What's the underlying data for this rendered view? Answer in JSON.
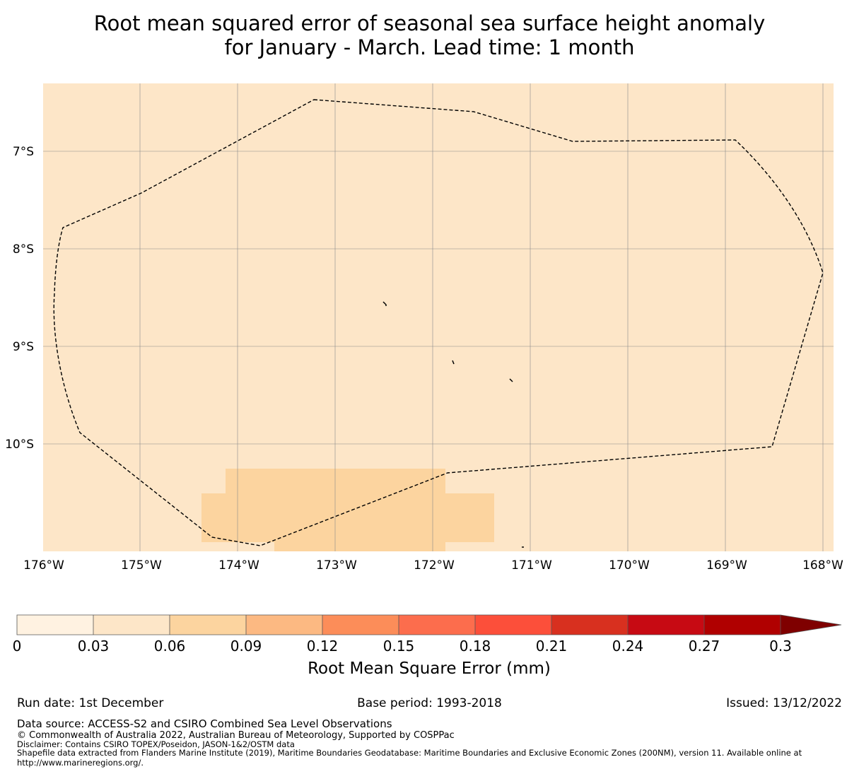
{
  "title": {
    "line1": "Root mean squared error of seasonal sea surface height anomaly",
    "line2": "for January - March. Lead time: 1 month"
  },
  "map": {
    "background_color": "#fde6c8",
    "patch_color": "#fcd49f",
    "lat_labels": [
      "7°S",
      "8°S",
      "9°S",
      "10°S"
    ],
    "lon_labels": [
      "176°W",
      "175°W",
      "174°W",
      "173°W",
      "172°W",
      "171°W",
      "170°W",
      "169°W",
      "168°W"
    ]
  },
  "colorbar": {
    "label": "Root Mean Square Error (mm)",
    "ticks": [
      "0",
      "0.03",
      "0.06",
      "0.09",
      "0.12",
      "0.15",
      "0.18",
      "0.21",
      "0.24",
      "0.27",
      "0.3"
    ],
    "colors": [
      "#fff2e1",
      "#fde6c8",
      "#fcd49f",
      "#fcb982",
      "#fc8d59",
      "#fc6d4d",
      "#fc4f3a",
      "#d8301f",
      "#c70a13",
      "#b00000",
      "#7f0000"
    ]
  },
  "footer": {
    "run_date": "Run date: 1st December",
    "base_period": "Base period: 1993-2018",
    "issued": "Issued: 13/12/2022",
    "data_source": "Data source: ACCESS-S2 and CSIRO Combined Sea Level Observations",
    "copyright": "© Commonwealth of Australia 2022, Australian Bureau of Meteorology, Supported by COSPPac",
    "disclaimer": "Disclaimer: Contains CSIRO TOPEX/Poseidon, JASON-1&2/OSTM data",
    "shapefile_line1": "Shapefile data extracted from Flanders Marine Institute (2019), Maritime Boundaries Geodatabase: Maritime Boundaries and Exclusive Economic Zones (200NM), version 11. Available online at",
    "shapefile_line2": "http://www.marineregions.org/."
  }
}
